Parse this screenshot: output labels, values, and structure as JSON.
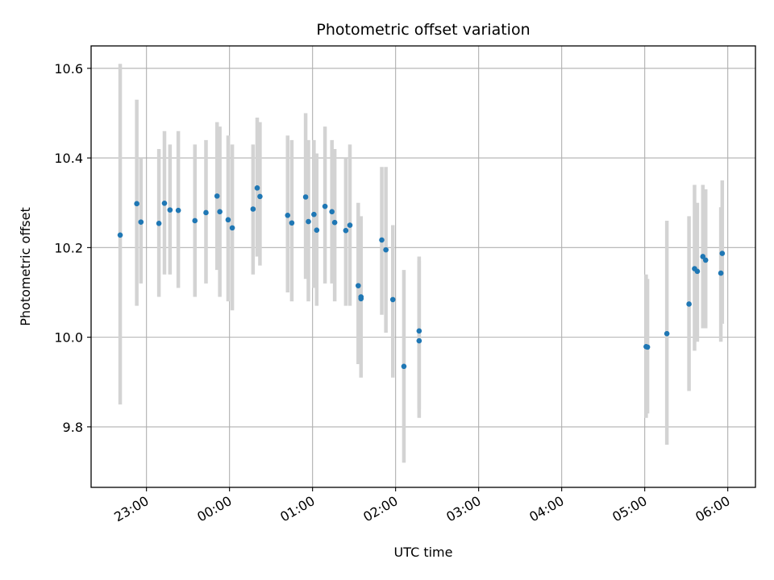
{
  "colors": {
    "points": "#1f77b4",
    "errorbars": "#d3d3d3",
    "grid": "#b0b0b0"
  },
  "chart_data": {
    "type": "scatter",
    "title": "Photometric offset variation",
    "xlabel": "UTC time",
    "ylabel": "Photometric offset",
    "grid": true,
    "xlim": [
      "22:20",
      "06:20"
    ],
    "ylim": [
      9.665,
      10.65
    ],
    "xticks": [
      "23:00",
      "00:00",
      "01:00",
      "02:00",
      "03:00",
      "04:00",
      "05:00",
      "06:00"
    ],
    "yticks": [
      9.8,
      10.0,
      10.2,
      10.4,
      10.6
    ],
    "ytick_labels": [
      "9.8",
      "10.0",
      "10.2",
      "10.4",
      "10.6"
    ],
    "series": [
      {
        "marker_color": "#1f77b4",
        "errorbar_color": "#d3d3d3",
        "points": [
          {
            "x": "22:41",
            "y": 10.228,
            "ylow": 9.85,
            "yhigh": 10.61
          },
          {
            "x": "22:53",
            "y": 10.298,
            "ylow": 10.07,
            "yhigh": 10.53
          },
          {
            "x": "22:56",
            "y": 10.257,
            "ylow": 10.12,
            "yhigh": 10.4
          },
          {
            "x": "23:09",
            "y": 10.254,
            "ylow": 10.09,
            "yhigh": 10.42
          },
          {
            "x": "23:13",
            "y": 10.299,
            "ylow": 10.14,
            "yhigh": 10.46
          },
          {
            "x": "23:17",
            "y": 10.284,
            "ylow": 10.14,
            "yhigh": 10.43
          },
          {
            "x": "23:23",
            "y": 10.283,
            "ylow": 10.11,
            "yhigh": 10.46
          },
          {
            "x": "23:35",
            "y": 10.26,
            "ylow": 10.09,
            "yhigh": 10.43
          },
          {
            "x": "23:43",
            "y": 10.278,
            "ylow": 10.12,
            "yhigh": 10.44
          },
          {
            "x": "23:51",
            "y": 10.315,
            "ylow": 10.15,
            "yhigh": 10.48
          },
          {
            "x": "23:53",
            "y": 10.28,
            "ylow": 10.09,
            "yhigh": 10.47
          },
          {
            "x": "23:59",
            "y": 10.262,
            "ylow": 10.08,
            "yhigh": 10.45
          },
          {
            "x": "00:02",
            "y": 10.244,
            "ylow": 10.06,
            "yhigh": 10.43
          },
          {
            "x": "00:17",
            "y": 10.286,
            "ylow": 10.14,
            "yhigh": 10.43
          },
          {
            "x": "00:20",
            "y": 10.333,
            "ylow": 10.18,
            "yhigh": 10.49
          },
          {
            "x": "00:22",
            "y": 10.314,
            "ylow": 10.16,
            "yhigh": 10.48
          },
          {
            "x": "00:42",
            "y": 10.272,
            "ylow": 10.1,
            "yhigh": 10.45
          },
          {
            "x": "00:45",
            "y": 10.255,
            "ylow": 10.08,
            "yhigh": 10.44
          },
          {
            "x": "00:55",
            "y": 10.313,
            "ylow": 10.13,
            "yhigh": 10.5
          },
          {
            "x": "00:57",
            "y": 10.258,
            "ylow": 10.08,
            "yhigh": 10.44
          },
          {
            "x": "01:01",
            "y": 10.274,
            "ylow": 10.11,
            "yhigh": 10.44
          },
          {
            "x": "01:03",
            "y": 10.239,
            "ylow": 10.07,
            "yhigh": 10.41
          },
          {
            "x": "01:09",
            "y": 10.292,
            "ylow": 10.12,
            "yhigh": 10.47
          },
          {
            "x": "01:14",
            "y": 10.28,
            "ylow": 10.12,
            "yhigh": 10.44
          },
          {
            "x": "01:16",
            "y": 10.256,
            "ylow": 10.08,
            "yhigh": 10.42
          },
          {
            "x": "01:24",
            "y": 10.238,
            "ylow": 10.07,
            "yhigh": 10.4
          },
          {
            "x": "01:27",
            "y": 10.25,
            "ylow": 10.07,
            "yhigh": 10.43
          },
          {
            "x": "01:33",
            "y": 10.115,
            "ylow": 9.94,
            "yhigh": 10.3
          },
          {
            "x": "01:35",
            "y": 10.09,
            "ylow": 9.92,
            "yhigh": 10.27
          },
          {
            "x": "01:35",
            "y": 10.086,
            "ylow": 9.91,
            "yhigh": 10.26
          },
          {
            "x": "01:50",
            "y": 10.217,
            "ylow": 10.05,
            "yhigh": 10.38
          },
          {
            "x": "01:53",
            "y": 10.195,
            "ylow": 10.01,
            "yhigh": 10.38
          },
          {
            "x": "01:58",
            "y": 10.084,
            "ylow": 9.91,
            "yhigh": 10.25
          },
          {
            "x": "02:06",
            "y": 9.935,
            "ylow": 9.72,
            "yhigh": 10.15
          },
          {
            "x": "02:17",
            "y": 10.014,
            "ylow": 9.84,
            "yhigh": 10.18
          },
          {
            "x": "02:17",
            "y": 9.992,
            "ylow": 9.82,
            "yhigh": 10.17
          },
          {
            "x": "05:01",
            "y": 9.979,
            "ylow": 9.82,
            "yhigh": 10.14
          },
          {
            "x": "05:02",
            "y": 9.978,
            "ylow": 9.83,
            "yhigh": 10.13
          },
          {
            "x": "05:16",
            "y": 10.008,
            "ylow": 9.76,
            "yhigh": 10.26
          },
          {
            "x": "05:32",
            "y": 10.074,
            "ylow": 9.88,
            "yhigh": 10.27
          },
          {
            "x": "05:36",
            "y": 10.153,
            "ylow": 9.97,
            "yhigh": 10.34
          },
          {
            "x": "05:38",
            "y": 10.147,
            "ylow": 9.99,
            "yhigh": 10.3
          },
          {
            "x": "05:42",
            "y": 10.18,
            "ylow": 10.02,
            "yhigh": 10.34
          },
          {
            "x": "05:44",
            "y": 10.172,
            "ylow": 10.02,
            "yhigh": 10.33
          },
          {
            "x": "05:55",
            "y": 10.143,
            "ylow": 9.99,
            "yhigh": 10.29
          },
          {
            "x": "05:56",
            "y": 10.187,
            "ylow": 10.03,
            "yhigh": 10.35
          }
        ]
      }
    ]
  }
}
